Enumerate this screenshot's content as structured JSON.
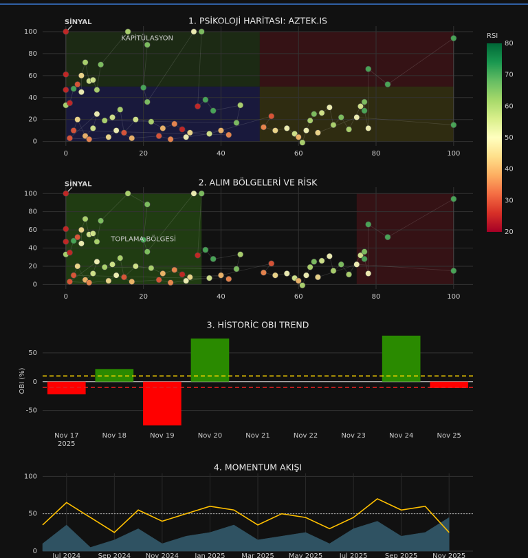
{
  "chart_data": [
    {
      "type": "scatter",
      "title": "1. PSİKOLOJİ HARİTASI: AZTEK.IS",
      "x": [
        0,
        0,
        0,
        0,
        1,
        2,
        3,
        4,
        4,
        5,
        6,
        7,
        8,
        9,
        16,
        21,
        20,
        21,
        33,
        35,
        34,
        36,
        38,
        45,
        44,
        10,
        12,
        14,
        15,
        18,
        22,
        25,
        28,
        30,
        32,
        40,
        42,
        2,
        3,
        5,
        7,
        8,
        1,
        6,
        11,
        13,
        17,
        24,
        27,
        31,
        37,
        53,
        51,
        54,
        57,
        59,
        60,
        61,
        62,
        63,
        64,
        66,
        68,
        69,
        71,
        73,
        76,
        77,
        77,
        78,
        78,
        83,
        100,
        100,
        75,
        65
      ],
      "y": [
        100,
        61,
        47,
        33,
        35,
        48,
        52,
        45,
        60,
        72,
        55,
        56,
        47,
        70,
        100,
        88,
        49,
        36,
        100,
        100,
        32,
        38,
        28,
        33,
        17,
        19,
        22,
        29,
        8,
        20,
        18,
        12,
        16,
        11,
        8,
        10,
        6,
        10,
        20,
        5,
        12,
        25,
        3,
        2,
        4,
        10,
        3,
        5,
        2,
        4,
        7,
        23,
        13,
        10,
        12,
        7,
        4,
        -1,
        10,
        19,
        25,
        26,
        31,
        15,
        22,
        11,
        32,
        36,
        28,
        12,
        66,
        52,
        94,
        15,
        22,
        8
      ],
      "rsi": [
        25,
        25,
        25,
        60,
        25,
        70,
        30,
        50,
        45,
        60,
        55,
        55,
        60,
        65,
        60,
        65,
        70,
        65,
        50,
        65,
        25,
        70,
        70,
        60,
        65,
        60,
        55,
        60,
        30,
        55,
        60,
        40,
        35,
        25,
        45,
        40,
        35,
        30,
        45,
        40,
        55,
        50,
        30,
        35,
        45,
        50,
        40,
        30,
        35,
        50,
        55,
        30,
        35,
        45,
        50,
        55,
        40,
        60,
        50,
        60,
        65,
        55,
        50,
        60,
        65,
        60,
        55,
        65,
        70,
        50,
        70,
        70,
        70,
        70,
        50,
        45
      ],
      "xlim": [
        -6,
        105
      ],
      "ylim": [
        -4,
        105
      ],
      "xticks": [
        0,
        20,
        40,
        60,
        80,
        100
      ],
      "yticks": [
        0,
        20,
        40,
        60,
        80,
        100
      ],
      "colorbar_title": "RSI",
      "clim": [
        20,
        80
      ],
      "cticks": [
        20,
        30,
        40,
        50,
        60,
        70,
        80
      ],
      "colorscale": [
        "#a50026",
        "#d73027",
        "#f46d43",
        "#fdae61",
        "#fee08b",
        "#ffffbf",
        "#d9ef8b",
        "#a6d96a",
        "#66bd63",
        "#1a9850",
        "#006837"
      ],
      "zones": [
        {
          "x": [
            0,
            50
          ],
          "y": [
            50,
            100
          ],
          "color": "rgba(70,130,30,0.22)"
        },
        {
          "x": [
            50,
            100
          ],
          "y": [
            50,
            100
          ],
          "color": "rgba(120,20,30,0.35)"
        },
        {
          "x": [
            0,
            50
          ],
          "y": [
            0,
            50
          ],
          "color": "rgba(40,40,140,0.35)"
        },
        {
          "x": [
            50,
            100
          ],
          "y": [
            0,
            50
          ],
          "color": "rgba(120,110,20,0.3)"
        }
      ],
      "annotations": [
        {
          "text": "SİNYAL",
          "x": 0,
          "y": 100,
          "color": "#ffffff"
        },
        {
          "text": "KAPİTÜLASYON",
          "x": 21,
          "y": 94,
          "color": "#7fff50"
        }
      ]
    },
    {
      "type": "scatter-shared",
      "title": "2. ALIM BÖLGELERİ VE RİSK",
      "xlim": [
        -6,
        105
      ],
      "ylim": [
        -5,
        107
      ],
      "xticks": [
        0,
        20,
        40,
        60,
        80,
        100
      ],
      "yticks": [
        0,
        20,
        40,
        60,
        80,
        100
      ],
      "zones": [
        {
          "x": [
            0,
            35
          ],
          "y": [
            0,
            100
          ],
          "color": "rgba(60,140,20,0.35)"
        },
        {
          "x": [
            75,
            100
          ],
          "y": [
            0,
            100
          ],
          "color": "rgba(120,20,30,0.35)"
        }
      ],
      "annotations": [
        {
          "text": "SİNYAL",
          "x": 0,
          "y": 100,
          "color": "#ffffff"
        },
        {
          "text": "TOPLAMA BÖLGESİ",
          "x": 20,
          "y": 50,
          "color": "#90ee60"
        }
      ]
    },
    {
      "type": "bar",
      "title": "3. HİSTORİC OBI TREND",
      "ylabel": "OBI (%)",
      "categories": [
        "Nov 17",
        "Nov 18",
        "Nov 19",
        "Nov 20",
        "Nov 21",
        "Nov 22",
        "Nov 23",
        "Nov 24",
        "Nov 25"
      ],
      "year_label": "2025",
      "values": [
        -22,
        22,
        -76,
        75,
        null,
        null,
        null,
        80,
        -11
      ],
      "positive_color": "#2a8a00",
      "negative_color": "#ff0000",
      "ylim": [
        -78,
        81
      ],
      "yticks": [
        -50,
        0,
        50
      ],
      "thresholds": [
        {
          "value": 10,
          "color": "#ffd700"
        },
        {
          "value": -10,
          "color": "#e02020"
        }
      ]
    },
    {
      "type": "line",
      "title": "4. MOMENTUM AKIŞI",
      "x": [
        "2024-06",
        "2024-07",
        "2024-08",
        "2024-09",
        "2024-10",
        "2024-11",
        "2024-12",
        "2025-01",
        "2025-02",
        "2025-03",
        "2025-04",
        "2025-05",
        "2025-06",
        "2025-07",
        "2025-08",
        "2025-09",
        "2025-10",
        "2025-11"
      ],
      "series": [
        {
          "color": "#ffc000",
          "values": [
            35,
            65,
            45,
            25,
            55,
            40,
            50,
            60,
            55,
            35,
            50,
            45,
            30,
            45,
            70,
            55,
            60,
            25
          ]
        },
        {
          "color": "#2f5262",
          "fill": true,
          "values": [
            10,
            35,
            5,
            15,
            30,
            10,
            20,
            25,
            35,
            15,
            20,
            25,
            10,
            30,
            40,
            20,
            25,
            45
          ]
        }
      ],
      "xlim": [
        "2024-06",
        "2025-12"
      ],
      "ylim": [
        0,
        104
      ],
      "yticks": [
        0,
        50,
        100
      ],
      "ref_line": 50,
      "xticks": [
        {
          "value": "2024-07",
          "label": "Jul 2024"
        },
        {
          "value": "2024-09",
          "label": "Sep 2024"
        },
        {
          "value": "2024-11",
          "label": "Nov 2024"
        },
        {
          "value": "2025-01",
          "label": "Jan 2025"
        },
        {
          "value": "2025-03",
          "label": "Mar 2025"
        },
        {
          "value": "2025-05",
          "label": "May 2025"
        },
        {
          "value": "2025-07",
          "label": "Jul 2025"
        },
        {
          "value": "2025-09",
          "label": "Sep 2025"
        },
        {
          "value": "2025-11",
          "label": "Nov 2025"
        }
      ]
    }
  ]
}
